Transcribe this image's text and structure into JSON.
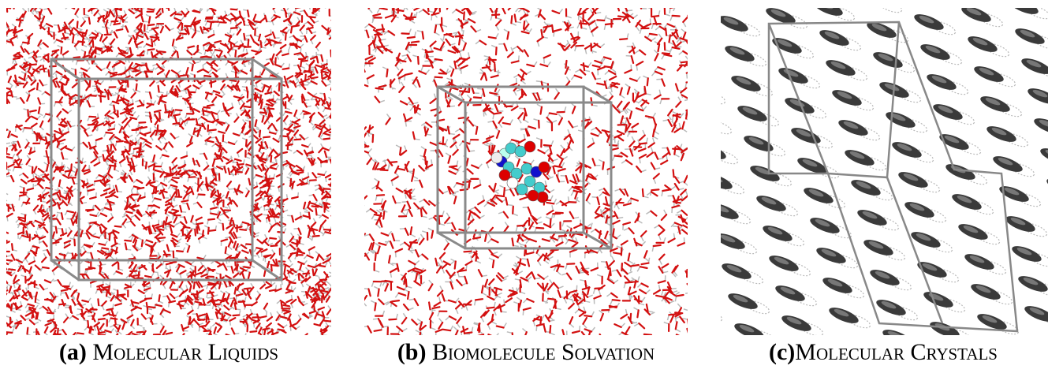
{
  "panels": [
    {
      "label": "(a)",
      "caption": "Molecular Liquids"
    },
    {
      "label": "(b)",
      "caption": "Biomolecule Solvation"
    },
    {
      "label": "(c)",
      "caption": "Molecular Crystals"
    }
  ]
}
